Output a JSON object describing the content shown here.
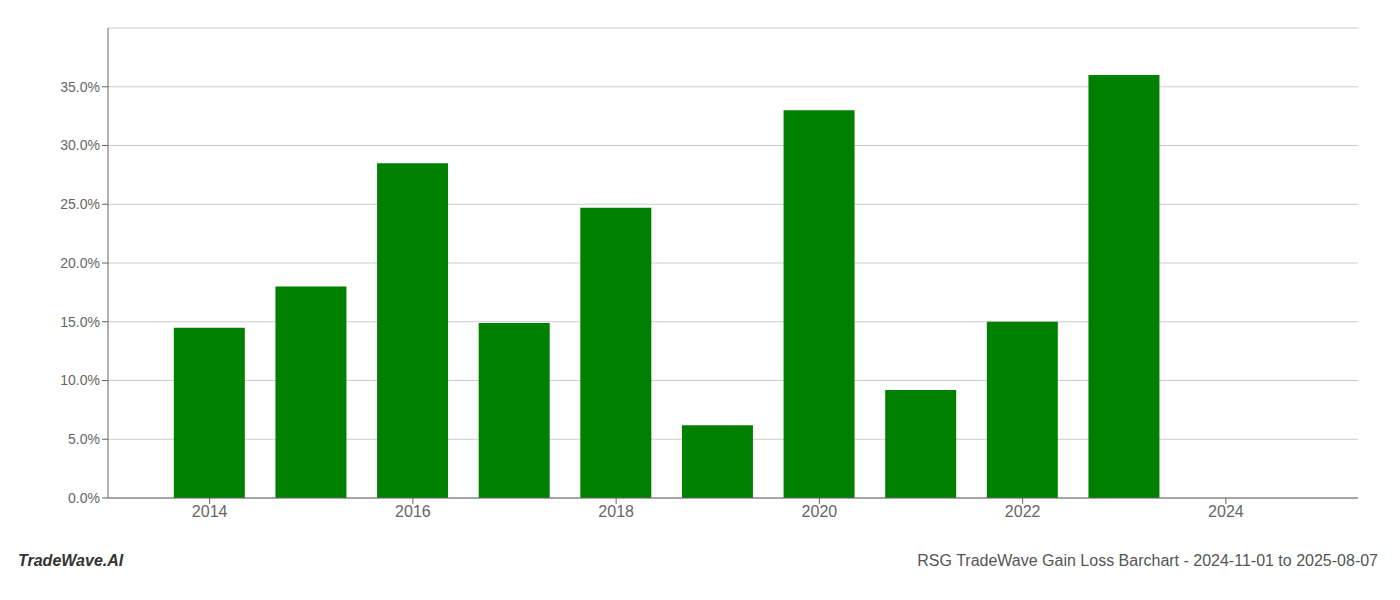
{
  "chart_data": {
    "type": "bar",
    "x": [
      2014,
      2015,
      2016,
      2017,
      2018,
      2019,
      2020,
      2021,
      2022,
      2023
    ],
    "values": [
      0.145,
      0.18,
      0.285,
      0.149,
      0.247,
      0.062,
      0.33,
      0.092,
      0.15,
      0.36
    ],
    "color": "#008000",
    "xlim": [
      2013.0,
      2025.3
    ],
    "xticks": [
      2014,
      2016,
      2018,
      2020,
      2022,
      2024
    ],
    "ylim": [
      0,
      0.4
    ],
    "yticks": [
      {
        "value": 0.0,
        "label": "0.0%"
      },
      {
        "value": 0.05,
        "label": "5.0%"
      },
      {
        "value": 0.1,
        "label": "10.0%"
      },
      {
        "value": 0.15,
        "label": "15.0%"
      },
      {
        "value": 0.2,
        "label": "20.0%"
      },
      {
        "value": 0.25,
        "label": "25.0%"
      },
      {
        "value": 0.3,
        "label": "30.0%"
      },
      {
        "value": 0.35,
        "label": "35.0%"
      }
    ],
    "grid": true,
    "annotations": [
      "TradeWave.AI",
      "RSG TradeWave Gain Loss Barchart - 2024-11-01 to 2025-08-07"
    ]
  }
}
